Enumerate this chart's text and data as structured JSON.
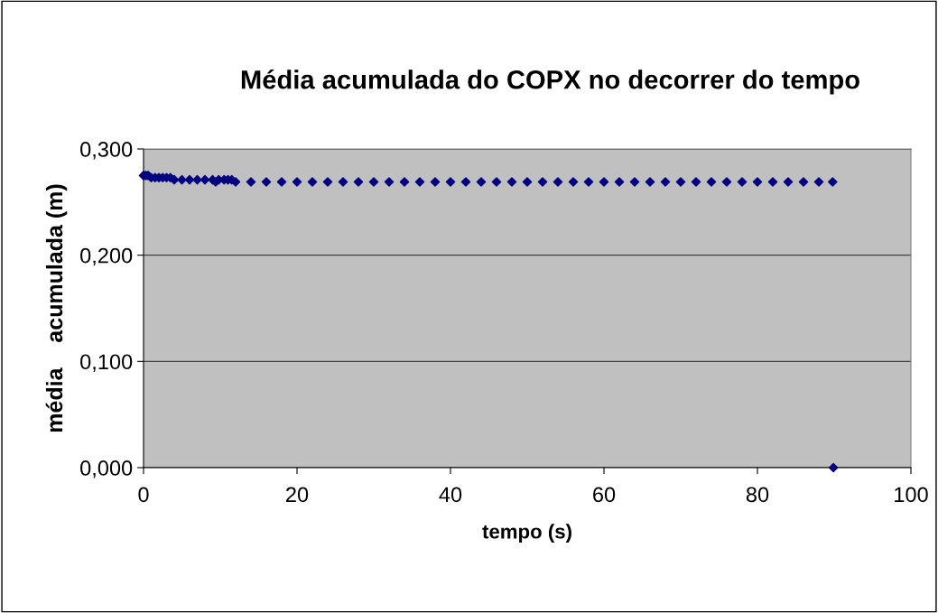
{
  "chart_data": {
    "type": "scatter",
    "title": "Média acumulada do COPX no decorrer do tempo",
    "xlabel": "tempo (s)",
    "ylabel": "média    acumulada (m)",
    "series": [
      {
        "color": "#000080",
        "x": [
          0,
          0.3,
          0.6,
          1.0,
          1.5,
          2.0,
          2.5,
          3.0,
          3.5,
          4.0,
          5,
          6,
          7,
          8,
          9,
          9.4,
          9.8,
          10.5,
          11,
          11.5,
          12,
          14,
          16,
          18,
          20,
          22,
          24,
          26,
          28,
          30,
          32,
          34,
          36,
          38,
          40,
          42,
          44,
          46,
          48,
          50,
          52,
          54,
          56,
          58,
          60,
          62,
          64,
          66,
          68,
          70,
          72,
          74,
          76,
          78,
          80,
          82,
          84,
          86,
          88,
          89.8,
          89.9
        ],
        "values": [
          0.275,
          0.275,
          0.275,
          0.273,
          0.273,
          0.273,
          0.273,
          0.273,
          0.273,
          0.271,
          0.271,
          0.271,
          0.271,
          0.271,
          0.271,
          0.269,
          0.271,
          0.271,
          0.271,
          0.271,
          0.269,
          0.269,
          0.269,
          0.269,
          0.269,
          0.269,
          0.269,
          0.269,
          0.269,
          0.269,
          0.269,
          0.269,
          0.269,
          0.269,
          0.269,
          0.269,
          0.269,
          0.269,
          0.269,
          0.269,
          0.269,
          0.269,
          0.269,
          0.269,
          0.269,
          0.269,
          0.269,
          0.269,
          0.269,
          0.269,
          0.269,
          0.269,
          0.269,
          0.269,
          0.269,
          0.269,
          0.269,
          0.269,
          0.269,
          0.269,
          0
        ]
      }
    ],
    "xlim": [
      0,
      100
    ],
    "xticks": [
      0,
      20,
      40,
      60,
      80,
      100
    ],
    "ylim": [
      0,
      0.3
    ],
    "yticks": [
      {
        "value": 0,
        "label": "0,000"
      },
      {
        "value": 0.1,
        "label": "0,100"
      },
      {
        "value": 0.2,
        "label": "0,200"
      },
      {
        "value": 0.3,
        "label": "0,300"
      }
    ],
    "grid": "y",
    "marker": "diamond",
    "legend": false
  }
}
